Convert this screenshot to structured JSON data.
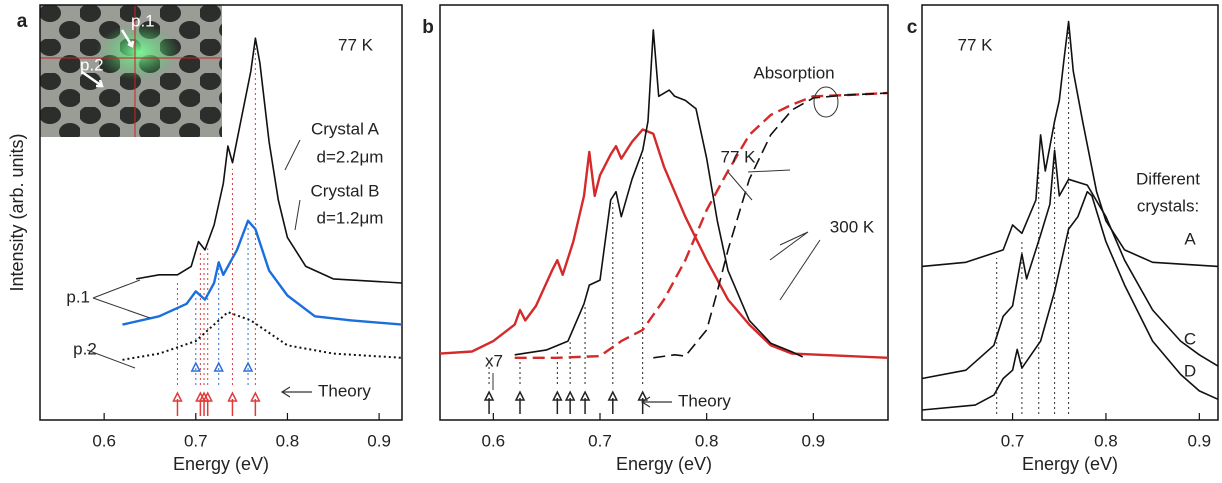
{
  "chart_data": [
    {
      "type": "line",
      "label": "a",
      "xlabel": "Energy (eV)",
      "ylabel": "Intensity (arb. units)",
      "xlim": [
        0.53,
        0.925
      ],
      "xticks": [
        0.6,
        0.7,
        0.8,
        0.9
      ],
      "ylim": [
        0,
        100
      ],
      "series": [
        {
          "name": "Crystal A",
          "color": "#111111",
          "linestyle": "solid",
          "x": [
            0.635,
            0.66,
            0.68,
            0.695,
            0.703,
            0.71,
            0.72,
            0.73,
            0.735,
            0.74,
            0.75,
            0.76,
            0.765,
            0.77,
            0.78,
            0.79,
            0.8,
            0.82,
            0.85,
            0.925
          ],
          "values": [
            34,
            35,
            35,
            37,
            43,
            41,
            47,
            57,
            66,
            62,
            73,
            84,
            92,
            86,
            67,
            53,
            44,
            37,
            34,
            33
          ]
        },
        {
          "name": "Crystal B",
          "color": "#1a6fdc",
          "linestyle": "solid",
          "x": [
            0.62,
            0.66,
            0.69,
            0.7,
            0.71,
            0.72,
            0.725,
            0.73,
            0.745,
            0.757,
            0.765,
            0.78,
            0.8,
            0.83,
            0.87,
            0.925
          ],
          "values": [
            23,
            25,
            28,
            31,
            29,
            33,
            38,
            35,
            41,
            48,
            46,
            36,
            30,
            25,
            24,
            23
          ]
        },
        {
          "name": "p.2",
          "color": "#111111",
          "linestyle": "dotted",
          "x": [
            0.62,
            0.66,
            0.7,
            0.735,
            0.76,
            0.8,
            0.85,
            0.925
          ],
          "values": [
            14.5,
            16,
            19,
            26,
            24,
            18,
            16,
            15
          ]
        }
      ],
      "annotations": [
        "77 K",
        "d=2.2μm",
        "d=1.2μm",
        "p.1"
      ],
      "inset_labels": [
        "p.1",
        "p.2"
      ],
      "theory": {
        "label": "Theory",
        "sets": [
          {
            "color": "#e03a3a",
            "values": [
              0.68,
              0.705,
              0.709,
              0.713,
              0.74,
              0.765
            ]
          },
          {
            "color": "#2f6fd6",
            "values": [
              0.7,
              0.725,
              0.757
            ]
          }
        ]
      }
    },
    {
      "type": "line",
      "label": "b",
      "xlabel": "Energy (eV)",
      "xlim": [
        0.55,
        0.97
      ],
      "xticks": [
        0.6,
        0.7,
        0.8,
        0.9
      ],
      "ylim": [
        0,
        100
      ],
      "series": [
        {
          "color": "#d42a2a",
          "linestyle": "solid",
          "x": [
            0.55,
            0.58,
            0.6,
            0.62,
            0.625,
            0.63,
            0.64,
            0.655,
            0.66,
            0.665,
            0.675,
            0.685,
            0.69,
            0.695,
            0.7,
            0.71,
            0.715,
            0.72,
            0.73,
            0.74,
            0.75,
            0.76,
            0.78,
            0.8,
            0.82,
            0.84,
            0.86,
            0.88,
            0.97
          ],
          "values": [
            16,
            16.5,
            19,
            23,
            26.5,
            24,
            27.5,
            36,
            38.5,
            35,
            43,
            54,
            64.6,
            54,
            59,
            64,
            66,
            63,
            67,
            70,
            69,
            61,
            49,
            38.5,
            29,
            23,
            18,
            16,
            15
          ]
        },
        {
          "color": "#111111",
          "linestyle": "solid",
          "x": [
            0.62,
            0.65,
            0.67,
            0.685,
            0.69,
            0.7,
            0.71,
            0.715,
            0.72,
            0.73,
            0.74,
            0.745,
            0.75,
            0.755,
            0.765,
            0.77,
            0.78,
            0.79,
            0.8,
            0.81,
            0.82,
            0.84,
            0.86,
            0.88,
            0.89
          ],
          "values": [
            15.7,
            16.9,
            19,
            28,
            32.5,
            33.7,
            53,
            55,
            49,
            58,
            65,
            72,
            94,
            78,
            79.5,
            78,
            77,
            75,
            63,
            48,
            36,
            24,
            18.5,
            16.4,
            15.2
          ]
        },
        {
          "color": "#d42a2a",
          "linestyle": "dashed",
          "x": [
            0.62,
            0.66,
            0.7,
            0.72,
            0.74,
            0.76,
            0.78,
            0.8,
            0.82,
            0.84,
            0.86,
            0.88,
            0.9,
            0.93,
            0.97
          ],
          "values": [
            15,
            15,
            15.4,
            19,
            21.7,
            29,
            38.5,
            50.6,
            60,
            68.7,
            73.5,
            76,
            78,
            78.3,
            78.8
          ]
        },
        {
          "color": "#111111",
          "linestyle": "dashed",
          "x": [
            0.75,
            0.77,
            0.78,
            0.8,
            0.81,
            0.82,
            0.84,
            0.86,
            0.88,
            0.9,
            0.93,
            0.97
          ],
          "values": [
            15,
            15.7,
            15.4,
            21.7,
            31,
            41,
            58,
            68.7,
            74.7,
            77.6,
            78.3,
            78.8
          ]
        }
      ],
      "annotations": [
        "Absorption",
        "77 K",
        "300 K",
        "x7"
      ],
      "theory": {
        "label": "Theory",
        "sets": [
          {
            "color": "#222222",
            "values": [
              0.596,
              0.625,
              0.66,
              0.672,
              0.686,
              0.712,
              0.74
            ]
          }
        ]
      }
    },
    {
      "type": "line",
      "label": "c",
      "xlabel": "Energy (eV)",
      "xlim": [
        0.603,
        0.92
      ],
      "xticks": [
        0.7,
        0.8,
        0.9
      ],
      "ylim": [
        0,
        100
      ],
      "series": [
        {
          "name": "A",
          "color": "#111111",
          "linestyle": "solid",
          "x": [
            0.603,
            0.65,
            0.69,
            0.7,
            0.71,
            0.725,
            0.73,
            0.735,
            0.745,
            0.75,
            0.755,
            0.76,
            0.765,
            0.775,
            0.79,
            0.8,
            0.82,
            0.85,
            0.92
          ],
          "values": [
            37,
            38,
            41,
            47,
            45,
            53,
            68.7,
            60,
            72,
            77,
            86.7,
            96,
            84,
            72,
            55,
            48,
            41,
            38,
            37
          ]
        },
        {
          "name": "C",
          "color": "#111111",
          "linestyle": "solid",
          "x": [
            0.603,
            0.65,
            0.68,
            0.69,
            0.7,
            0.71,
            0.715,
            0.73,
            0.74,
            0.745,
            0.75,
            0.76,
            0.78,
            0.8,
            0.82,
            0.85,
            0.88,
            0.9,
            0.92
          ],
          "values": [
            10,
            12,
            18,
            25,
            27.5,
            40,
            34,
            44.6,
            52,
            65,
            54,
            58,
            56.6,
            49,
            38.5,
            26.5,
            19,
            15.7,
            13
          ]
        },
        {
          "name": "D",
          "color": "#111111",
          "linestyle": "solid",
          "x": [
            0.603,
            0.66,
            0.68,
            0.69,
            0.7,
            0.705,
            0.71,
            0.73,
            0.745,
            0.75,
            0.76,
            0.77,
            0.78,
            0.785,
            0.8,
            0.82,
            0.85,
            0.88,
            0.9,
            0.92
          ],
          "values": [
            2.4,
            3.6,
            6,
            10,
            12,
            17,
            12.5,
            19,
            31,
            36,
            46,
            49,
            55,
            54,
            43,
            32.5,
            19,
            11,
            7,
            5
          ]
        }
      ],
      "annotations": [
        "77 K",
        "Different",
        "crystals:"
      ],
      "guides": [
        0.683,
        0.71,
        0.728,
        0.745,
        0.76
      ]
    }
  ]
}
